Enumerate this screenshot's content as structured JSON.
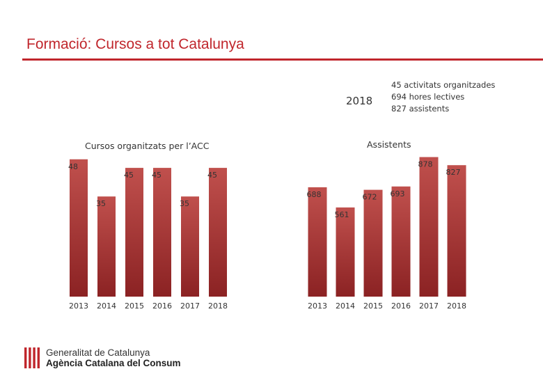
{
  "page": {
    "title": "Formació: Cursos a tot Catalunya",
    "year_label": "2018",
    "summary_lines": [
      "45 activitats organitzades",
      "694 hores lectives",
      "827 assistents"
    ]
  },
  "logo": {
    "line1": "Generalitat de Catalunya",
    "line2": "Agència Catalana del Consum"
  },
  "colors": {
    "accent": "#c0262c",
    "bar_top": "#c0504d",
    "bar_bottom": "#8b2223"
  },
  "chart_data": [
    {
      "type": "bar",
      "title": "Cursos organitzats per l’ACC",
      "categories": [
        "2013",
        "2014",
        "2015",
        "2016",
        "2017",
        "2018"
      ],
      "values": [
        48,
        35,
        45,
        45,
        35,
        45
      ],
      "ylim": [
        0,
        55
      ]
    },
    {
      "type": "bar",
      "title": "Assistents",
      "categories": [
        "2013",
        "2014",
        "2015",
        "2016",
        "2017",
        "2018"
      ],
      "values": [
        688,
        561,
        672,
        693,
        878,
        827
      ],
      "ylim": [
        0,
        990
      ]
    }
  ]
}
